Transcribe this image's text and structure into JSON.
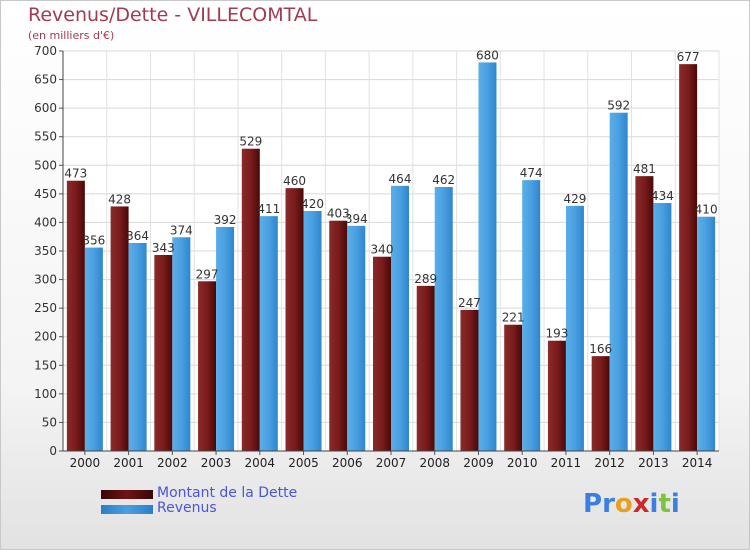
{
  "title": "Revenus/Dette - VILLECOMTAL",
  "subtitle": "(en milliers d'€)",
  "legend": [
    {
      "label": "Montant de la Dette",
      "color": "#6e1414"
    },
    {
      "label": "Revenus",
      "color": "#4a9fe0"
    }
  ],
  "logo": {
    "letters": [
      "P",
      "r",
      "o",
      "x",
      "i",
      "t",
      "i"
    ],
    "colors": [
      "#3b7fe0",
      "#3b7fe0",
      "#e8a020",
      "#cc2a2a",
      "#3b7fe0",
      "#7cc340",
      "#3b7fe0"
    ]
  },
  "chart_data": {
    "type": "bar",
    "title": "Revenus/Dette - VILLECOMTAL",
    "ylabel": "(en milliers d'€)",
    "ylim": [
      0,
      700
    ],
    "yticks": [
      "0",
      "50",
      "100",
      "150",
      "200",
      "250",
      "300",
      "350",
      "400",
      "450",
      "500",
      "550",
      "600",
      "650",
      "700"
    ],
    "categories": [
      "2000",
      "2001",
      "2002",
      "2003",
      "2004",
      "2005",
      "2006",
      "2007",
      "2008",
      "2009",
      "2010",
      "2011",
      "2012",
      "2013",
      "2014"
    ],
    "grid": true,
    "legend_position": "bottom-left",
    "series": [
      {
        "name": "Montant de la Dette",
        "color": "#6e1414",
        "values": [
          473,
          428,
          343,
          297,
          529,
          460,
          403,
          340,
          289,
          247,
          221,
          193,
          166,
          481,
          677
        ],
        "labels": [
          "473",
          "428",
          "343",
          "297",
          "529",
          "460",
          "403",
          "340",
          "289",
          "247",
          "221",
          "193",
          "166",
          "481",
          "677"
        ]
      },
      {
        "name": "Revenus",
        "color": "#4a9fe0",
        "values": [
          356,
          364,
          374,
          392,
          411,
          420,
          394,
          464,
          462,
          680,
          474,
          429,
          592,
          434,
          410
        ],
        "labels": [
          "356",
          "364",
          "374",
          "392",
          "411",
          "420",
          "394",
          "464",
          "462",
          "680",
          "474",
          "429",
          "592",
          "434",
          "410"
        ]
      }
    ]
  }
}
